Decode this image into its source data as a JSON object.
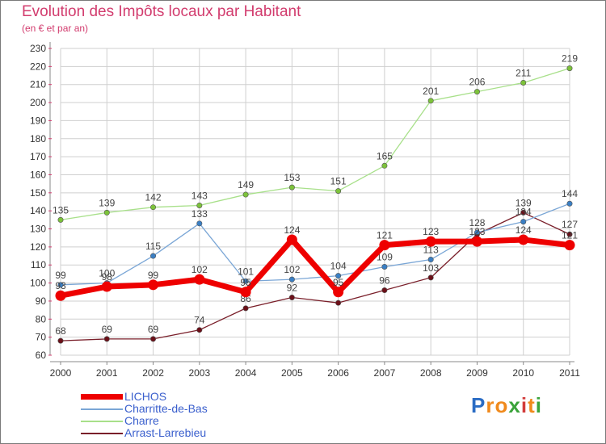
{
  "title": "Evolution des Impôts locaux par Habitant",
  "subtitle": "(en € et par an)",
  "logo": {
    "text": "Proxiti",
    "letters": [
      "P",
      "r",
      "o",
      "x",
      "i",
      "t",
      "i"
    ],
    "colors": [
      "#2a6cc4",
      "#f08a1c",
      "#f08a1c",
      "#3aa33a",
      "#d23c3c",
      "#f08a1c",
      "#3aa33a"
    ]
  },
  "colors": {
    "title": "#d23c6e",
    "axis": "#888888",
    "grid": "#cfcfcf",
    "label": "#333333",
    "tick_mark": "#d23c6e"
  },
  "chart_data": {
    "type": "line",
    "title": "Evolution des Impôts locaux par Habitant",
    "subtitle": "(en € et par an)",
    "xlabel": "",
    "ylabel": "",
    "x": [
      2000,
      2001,
      2002,
      2003,
      2004,
      2005,
      2006,
      2007,
      2008,
      2009,
      2010,
      2011
    ],
    "ylim": [
      60,
      230
    ],
    "yticks": [
      60,
      70,
      80,
      90,
      100,
      110,
      120,
      130,
      140,
      150,
      160,
      170,
      180,
      190,
      200,
      210,
      220,
      230
    ],
    "grid": true,
    "legend_position": "bottom-left",
    "series": [
      {
        "name": "Arrast-Larrebieu",
        "color": "#7a1f2a",
        "dot": "#6b0f18",
        "values": [
          68,
          69,
          69,
          74,
          86,
          92,
          89,
          96,
          103,
          127,
          139,
          127
        ],
        "labels": [
          "68",
          "69",
          "69",
          "74",
          "86",
          "92",
          "",
          "96",
          "103",
          "",
          "139",
          "127"
        ]
      },
      {
        "name": "Charre",
        "color": "#a8e08a",
        "dot": "#7cc23a",
        "values": [
          135,
          139,
          142,
          143,
          149,
          153,
          151,
          165,
          201,
          206,
          211,
          219
        ],
        "labels": [
          "135",
          "139",
          "142",
          "143",
          "149",
          "153",
          "151",
          "165",
          "201",
          "206",
          "211",
          "219"
        ]
      },
      {
        "name": "Charritte-de-Bas",
        "color": "#7aa6d6",
        "dot": "#3a7fc4",
        "values": [
          99,
          100,
          115,
          133,
          101,
          102,
          104,
          109,
          113,
          128,
          134,
          144
        ],
        "labels": [
          "99",
          "100",
          "115",
          "133",
          "101",
          "102",
          "104",
          "109",
          "113",
          "128",
          "134",
          "144"
        ]
      },
      {
        "name": "LICHOS",
        "color": "#ee0000",
        "dot": "#ee0000",
        "values": [
          93,
          98,
          99,
          102,
          95,
          124,
          95,
          121,
          123,
          123,
          124,
          121
        ],
        "labels": [
          "93",
          "98",
          "99",
          "102",
          "95",
          "124",
          "95",
          "121",
          "123",
          "123",
          "124",
          "121"
        ]
      }
    ]
  },
  "legend": [
    {
      "name": "LICHOS",
      "color": "#ee0000",
      "thick": true
    },
    {
      "name": "Charritte-de-Bas",
      "color": "#7aa6d6",
      "thick": false
    },
    {
      "name": "Charre",
      "color": "#a8e08a",
      "thick": false
    },
    {
      "name": "Arrast-Larrebieu",
      "color": "#7a1f2a",
      "thick": false
    }
  ]
}
